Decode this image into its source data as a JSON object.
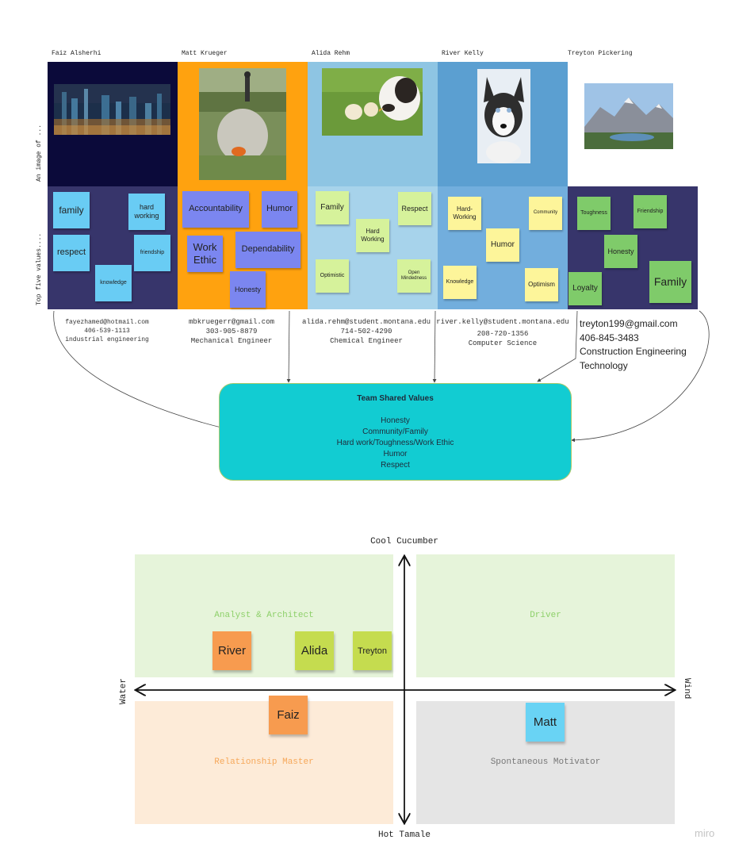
{
  "members": [
    {
      "name": "Faiz Alsherhi",
      "email": "fayezhamed@hotmail.com",
      "phone": "406-539-1113",
      "major": "industrial engineering",
      "values": [
        "family",
        "hard working",
        "respect",
        "friendship",
        "knowledge"
      ],
      "photo": "city-night-skyline"
    },
    {
      "name": "Matt Krueger",
      "email": "mbkruegerr@gmail.com",
      "phone": "303-905-8879",
      "major": "Mechanical Engineer",
      "values": [
        "Accountability",
        "Humor",
        "Work Ethic",
        "Dependability",
        "Honesty"
      ],
      "photo": "person-on-rock"
    },
    {
      "name": "Alida Rehm",
      "email": "alida.rehm@student.montana.edu",
      "phone": "714-502-4290",
      "major": "Chemical Engineer",
      "values": [
        "Family",
        "Respect",
        "Hard Working",
        "Optimistic",
        "Open Mindedness"
      ],
      "photo": "dog-with-chicks"
    },
    {
      "name": "River Kelly",
      "email": "river.kelly@student.montana.edu",
      "phone": "208-720-1356",
      "major": "Computer Science",
      "values": [
        "Hard-Working",
        "Community",
        "Humor",
        "Knowledge",
        "Optimism"
      ],
      "photo": "husky-in-snow"
    },
    {
      "name": "Treyton Pickering",
      "email": "treyton199@gmail.com",
      "phone": "406-845-3483",
      "major": "Construction Engineering Technology",
      "values": [
        "Toughness",
        "Friendship",
        "Honesty",
        "Loyalty",
        "Family"
      ],
      "photo": "mountain-landscape"
    }
  ],
  "row_labels": {
    "image": "An image of ...",
    "values": "Top five values...."
  },
  "shared": {
    "title": "Team Shared Values",
    "items": [
      "Honesty",
      "Community/Family",
      "Hard work/Toughness/Work Ethic",
      "Humor",
      "Respect"
    ]
  },
  "matrix": {
    "top": "Cool Cucumber",
    "bottom": "Hot Tamale",
    "left": "Water",
    "right": "Wind",
    "quadrants": {
      "tl": "Analyst & Architect",
      "tr": "Driver",
      "bl": "Relationship Master",
      "br": "Spontaneous Motivator"
    },
    "people": [
      "River",
      "Alida",
      "Treyton",
      "Faiz",
      "Matt"
    ]
  },
  "watermark": "miro",
  "colors": {
    "faiz_bg": "#0b0a3a",
    "matt_bg": "#ffa20f",
    "alida_bg": "#8ec5e3",
    "river_bg": "#5b9fd1",
    "values_bg": "#37356b",
    "shared_box": "#12ccd2",
    "quad_green": "#e6f4da",
    "quad_orange": "#fdebd8",
    "quad_gray": "#e5e5e5"
  }
}
